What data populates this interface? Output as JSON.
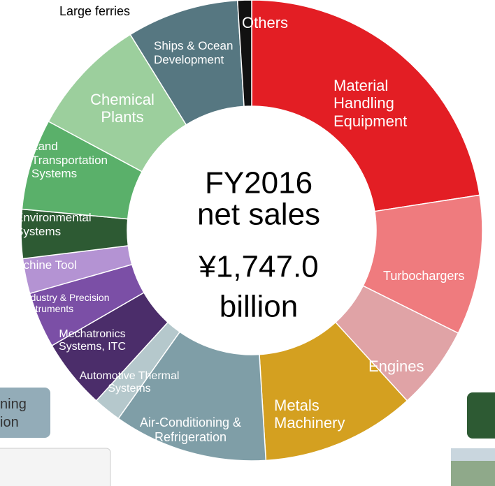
{
  "chart_data": {
    "type": "donut",
    "categories": [
      "Material Handling Equipment",
      "Turbochargers",
      "Engines",
      "Metals Machinery",
      "Air-Conditioning & Refrigeration",
      "Automotive Thermal Systems",
      "Mechatronics Systems, ITC",
      "Industry & Precision Instruments",
      "Machine Tool",
      "Environmental Systems",
      "Land Transportation Systems",
      "Chemical Plants",
      "Ships & Ocean Development",
      "Others"
    ],
    "values": [
      23,
      10,
      6,
      11,
      11,
      2,
      5,
      4,
      2.5,
      3.5,
      6.5,
      8.5,
      8,
      1
    ],
    "colors": [
      "#e31e24",
      "#ef7b7e",
      "#e0a3a6",
      "#d4a020",
      "#7f9ea7",
      "#b5c8cc",
      "#4b2d6a",
      "#7b4fa6",
      "#b493d3",
      "#2d5a33",
      "#5ab06a",
      "#9ccf9d",
      "#567781",
      "#111111"
    ],
    "annotation": "Large ferries",
    "center_text": [
      "FY2016",
      "net sales",
      "¥1,747.0",
      "billion"
    ]
  },
  "background_texts": [
    "ning",
    "ion"
  ]
}
